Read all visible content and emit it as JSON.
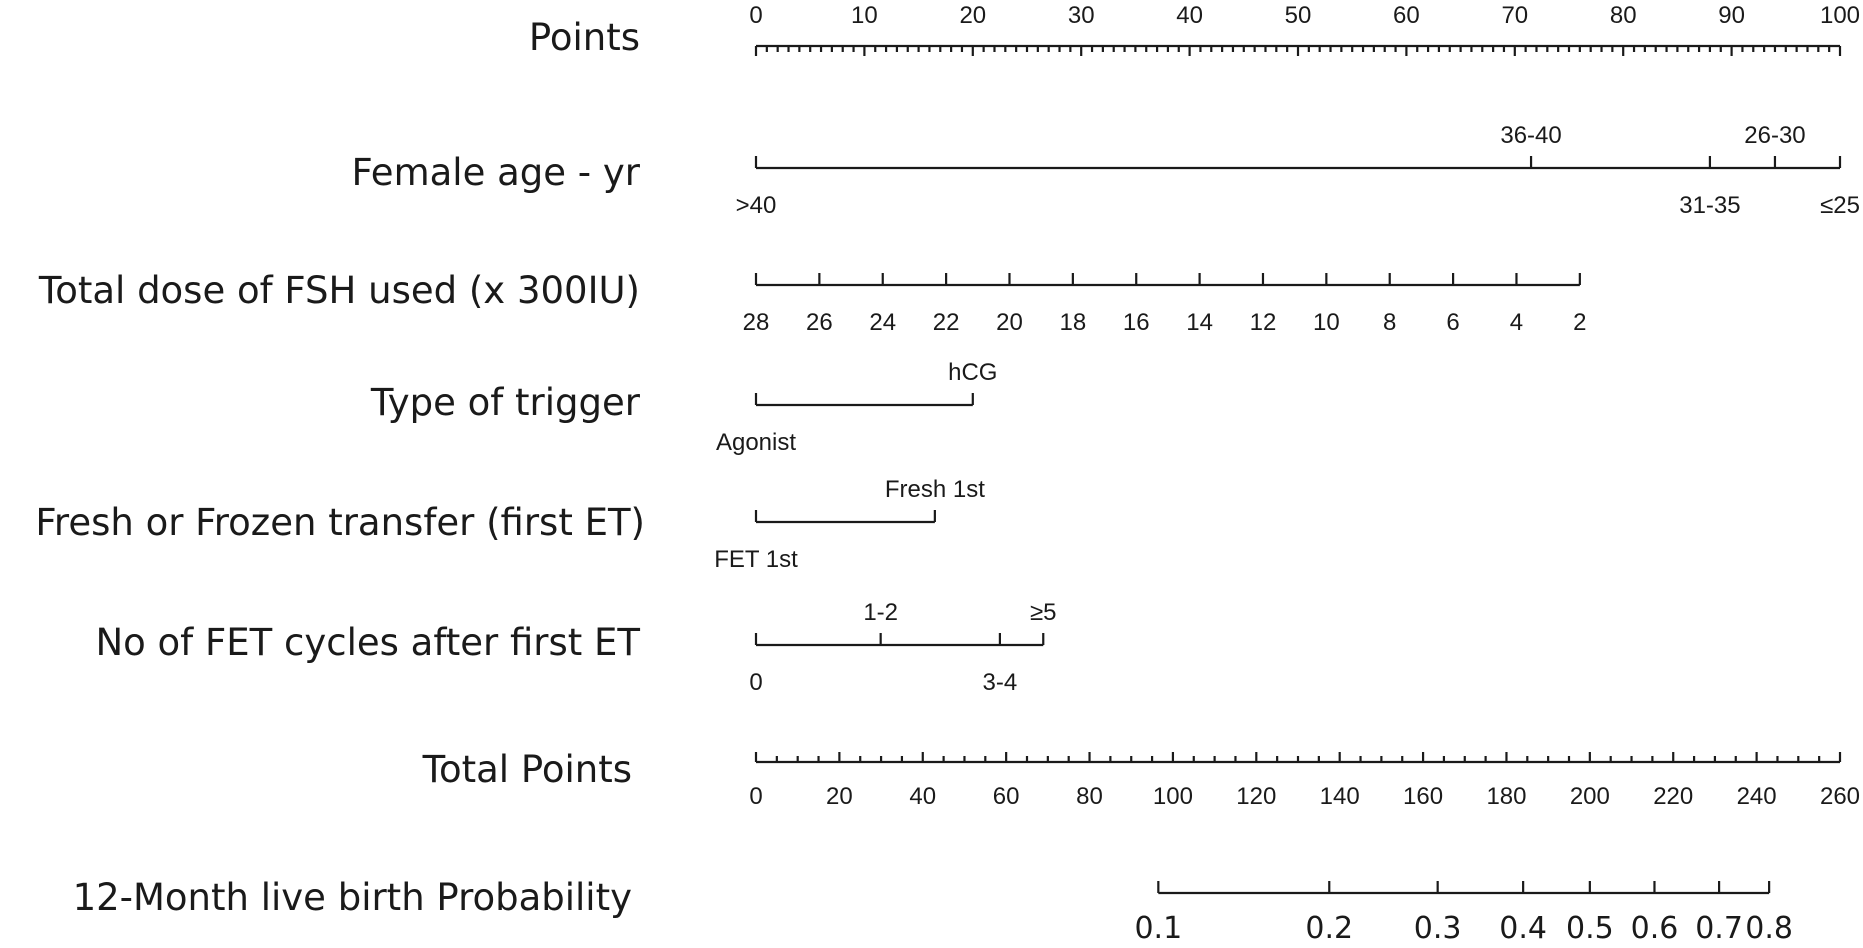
{
  "chart_data": {
    "type": "nomogram",
    "title": "",
    "rows": [
      {
        "id": "points",
        "label": "Points",
        "kind": "scale",
        "range": [
          0,
          100
        ],
        "major_step": 10,
        "minor_step": 1,
        "labels_above": true,
        "ticks": [
          {
            "value": 0,
            "label": "0"
          },
          {
            "value": 10,
            "label": "10"
          },
          {
            "value": 20,
            "label": "20"
          },
          {
            "value": 30,
            "label": "30"
          },
          {
            "value": 40,
            "label": "40"
          },
          {
            "value": 50,
            "label": "50"
          },
          {
            "value": 60,
            "label": "60"
          },
          {
            "value": 70,
            "label": "70"
          },
          {
            "value": 80,
            "label": "80"
          },
          {
            "value": 90,
            "label": "90"
          },
          {
            "value": 100,
            "label": "100"
          }
        ]
      },
      {
        "id": "female-age",
        "label": "Female age - yr",
        "kind": "categorical",
        "categories": [
          {
            "label": ">40",
            "points": 0,
            "position": "below"
          },
          {
            "label": "36-40",
            "points": 71.5,
            "position": "above"
          },
          {
            "label": "31-35",
            "points": 88,
            "position": "below"
          },
          {
            "label": "26-30",
            "points": 94,
            "position": "above"
          },
          {
            "label": "≤25",
            "points": 100,
            "position": "below"
          }
        ]
      },
      {
        "id": "fsh-dose",
        "label": "Total dose of FSH used (x 300IU)",
        "kind": "continuous",
        "points_range": [
          0,
          76
        ],
        "labels_below": true,
        "ticks": [
          {
            "value": 28,
            "label": "28"
          },
          {
            "value": 26,
            "label": "26"
          },
          {
            "value": 24,
            "label": "24"
          },
          {
            "value": 22,
            "label": "22"
          },
          {
            "value": 20,
            "label": "20"
          },
          {
            "value": 18,
            "label": "18"
          },
          {
            "value": 16,
            "label": "16"
          },
          {
            "value": 14,
            "label": "14"
          },
          {
            "value": 12,
            "label": "12"
          },
          {
            "value": 10,
            "label": "10"
          },
          {
            "value": 8,
            "label": "8"
          },
          {
            "value": 6,
            "label": "6"
          },
          {
            "value": 4,
            "label": "4"
          },
          {
            "value": 2,
            "label": "2"
          }
        ]
      },
      {
        "id": "trigger",
        "label": "Type of trigger",
        "kind": "categorical",
        "categories": [
          {
            "label": "Agonist",
            "points": 0,
            "position": "below"
          },
          {
            "label": "hCG",
            "points": 20,
            "position": "above"
          }
        ]
      },
      {
        "id": "fresh-frozen",
        "label": "Fresh or Frozen transfer (first ET)",
        "kind": "categorical",
        "categories": [
          {
            "label": "FET 1st",
            "points": 0,
            "position": "below"
          },
          {
            "label": "Fresh 1st",
            "points": 16.5,
            "position": "above"
          }
        ]
      },
      {
        "id": "fet-cycles",
        "label": "No of FET cycles after first ET",
        "kind": "categorical",
        "categories": [
          {
            "label": "0",
            "points": 0,
            "position": "below"
          },
          {
            "label": "1-2",
            "points": 11.5,
            "position": "above"
          },
          {
            "label": "3-4",
            "points": 22.5,
            "position": "below"
          },
          {
            "label": "≥5",
            "points": 26.5,
            "position": "above"
          }
        ]
      },
      {
        "id": "total-points",
        "label": "Total Points",
        "kind": "scale",
        "range": [
          0,
          260
        ],
        "major_step": 20,
        "minor_step": 5,
        "labels_below": true,
        "ticks": [
          {
            "value": 0,
            "label": "0"
          },
          {
            "value": 20,
            "label": "20"
          },
          {
            "value": 40,
            "label": "40"
          },
          {
            "value": 60,
            "label": "60"
          },
          {
            "value": 80,
            "label": "80"
          },
          {
            "value": 100,
            "label": "100"
          },
          {
            "value": 120,
            "label": "120"
          },
          {
            "value": 140,
            "label": "140"
          },
          {
            "value": 160,
            "label": "160"
          },
          {
            "value": 180,
            "label": "180"
          },
          {
            "value": 200,
            "label": "200"
          },
          {
            "value": 220,
            "label": "220"
          },
          {
            "value": 240,
            "label": "240"
          },
          {
            "value": 260,
            "label": "260"
          }
        ]
      },
      {
        "id": "live-birth-prob",
        "label": "12-Month live birth Probability",
        "kind": "probability",
        "total_points_range": [
          96.5,
          243
        ],
        "ticks": [
          {
            "value": 0.1,
            "label": "0.1",
            "total_points": 96.5
          },
          {
            "value": 0.2,
            "label": "0.2",
            "total_points": 137.5
          },
          {
            "value": 0.3,
            "label": "0.3",
            "total_points": 163.5
          },
          {
            "value": 0.4,
            "label": "0.4",
            "total_points": 184
          },
          {
            "value": 0.5,
            "label": "0.5",
            "total_points": 200
          },
          {
            "value": 0.6,
            "label": "0.6",
            "total_points": 215.5
          },
          {
            "value": 0.7,
            "label": "0.7",
            "total_points": 231
          },
          {
            "value": 0.8,
            "label": "0.8",
            "total_points": 243
          }
        ]
      }
    ]
  }
}
